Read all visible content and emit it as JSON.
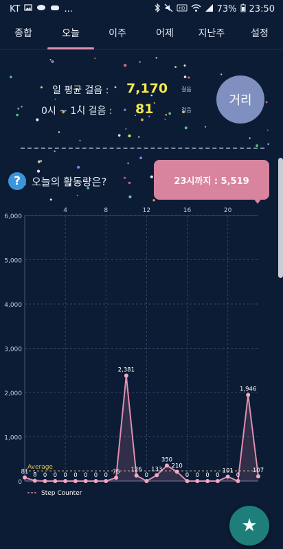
{
  "status_bar": {
    "carrier": "KT",
    "dots": "...",
    "battery_pct": "73%",
    "time": "23:50"
  },
  "tabs": [
    {
      "label": "종합"
    },
    {
      "label": "오늘"
    },
    {
      "label": "이주"
    },
    {
      "label": "어제"
    },
    {
      "label": "지난주"
    },
    {
      "label": "설정"
    }
  ],
  "summary": {
    "avg_label": "일 평균 걸음 :",
    "avg_value": "7,170",
    "avg_unit": "걸음",
    "hour_label": "0시 ~ 1시 걸음 :",
    "hour_value": "81",
    "hour_unit": "걸음",
    "distance_button": "거리"
  },
  "activity": {
    "question": "오늘의 활동량은?",
    "q_icon": "?",
    "tooltip": "23시까지 : 5,519"
  },
  "fab_icon": "★",
  "colors": {
    "background": "#0c1c35",
    "accent_pink": "#e08fb0",
    "value_yellow": "#f4e84d",
    "fab_teal": "#1e7f7a"
  },
  "chart_data": {
    "type": "line",
    "x": [
      0,
      1,
      2,
      3,
      4,
      5,
      6,
      7,
      8,
      9,
      10,
      11,
      12,
      13,
      14,
      15,
      16,
      17,
      18,
      19,
      20,
      21,
      22,
      23
    ],
    "series": [
      {
        "name": "Step Counter",
        "values": [
          81,
          8,
          0,
          0,
          0,
          0,
          0,
          0,
          0,
          76,
          2381,
          126,
          0,
          133,
          350,
          210,
          0,
          0,
          0,
          0,
          101,
          0,
          1946,
          107
        ]
      }
    ],
    "data_labels": [
      "81",
      "8",
      "0",
      "0",
      "0",
      "0",
      "0",
      "0",
      "0",
      "76",
      "2,381",
      "126",
      "0",
      "133",
      "350",
      "210",
      "0",
      "0",
      "0",
      "0",
      "101",
      "0",
      "1,946",
      "107"
    ],
    "x_ticks": [
      4,
      8,
      12,
      16,
      20
    ],
    "y_ticks": [
      "0",
      "1,000",
      "2,000",
      "3,000",
      "4,000",
      "5,000",
      "6,000"
    ],
    "ylim": [
      0,
      6000
    ],
    "average_label": "Average",
    "average_value": 230,
    "legend": "Step Counter",
    "grid": true
  }
}
